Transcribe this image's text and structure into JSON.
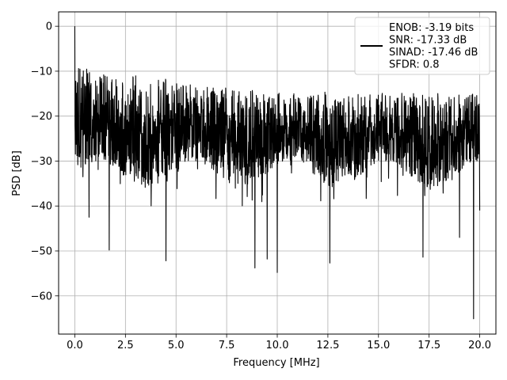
{
  "chart_data": {
    "type": "line",
    "xlabel": "Frequency [MHz]",
    "ylabel": "PSD [dB]",
    "xlim": [
      -0.8,
      20.8
    ],
    "ylim": [
      -68.5,
      3.2
    ],
    "xticks": [
      0.0,
      2.5,
      5.0,
      7.5,
      10.0,
      12.5,
      15.0,
      17.5,
      20.0
    ],
    "xtick_labels": [
      "0.0",
      "2.5",
      "5.0",
      "7.5",
      "10.0",
      "12.5",
      "15.0",
      "17.5",
      "20.0"
    ],
    "yticks": [
      0,
      -10,
      -20,
      -30,
      -40,
      -50,
      -60
    ],
    "ytick_labels": [
      "0",
      "−10",
      "−20",
      "−30",
      "−40",
      "−50",
      "−60"
    ],
    "grid": true,
    "legend_position": "top-right",
    "series": [
      {
        "name": "ENOB: -3.19 bits\nSNR: -17.33 dB\nSINAD: -17.46 dB\nSFDR: 0.8",
        "legend_lines": [
          "ENOB: -3.19 bits",
          "SNR: -17.33 dB",
          "SINAD: -17.46 dB",
          "SFDR: 0.8"
        ],
        "color": "#000000",
        "x_range": [
          0.0,
          20.0
        ],
        "points_count": 2049,
        "envelope_upper": [
          [
            0.0,
            0.0
          ],
          [
            0.1,
            -4.5
          ],
          [
            0.3,
            -8.5
          ],
          [
            0.7,
            -9.5
          ],
          [
            1.5,
            -10.2
          ],
          [
            3.0,
            -11.0
          ],
          [
            5.0,
            -12.0
          ],
          [
            7.5,
            -13.5
          ],
          [
            10.0,
            -14.5
          ],
          [
            12.5,
            -14.3
          ],
          [
            15.0,
            -14.8
          ],
          [
            17.5,
            -14.9
          ],
          [
            20.0,
            -15.0
          ]
        ],
        "envelope_lower_typical": -33,
        "median_level": -24,
        "notable_minima": [
          {
            "x": 0.4,
            "y": -33.5
          },
          {
            "x": 0.7,
            "y": -42.5
          },
          {
            "x": 1.7,
            "y": -49.8
          },
          {
            "x": 4.5,
            "y": -52.2
          },
          {
            "x": 8.9,
            "y": -53.8
          },
          {
            "x": 9.5,
            "y": -51.8
          },
          {
            "x": 10.0,
            "y": -54.8
          },
          {
            "x": 12.6,
            "y": -52.7
          },
          {
            "x": 17.2,
            "y": -51.4
          },
          {
            "x": 19.0,
            "y": -47.0
          },
          {
            "x": 19.7,
            "y": -65.1
          },
          {
            "x": 20.0,
            "y": -41.0
          }
        ]
      }
    ]
  }
}
